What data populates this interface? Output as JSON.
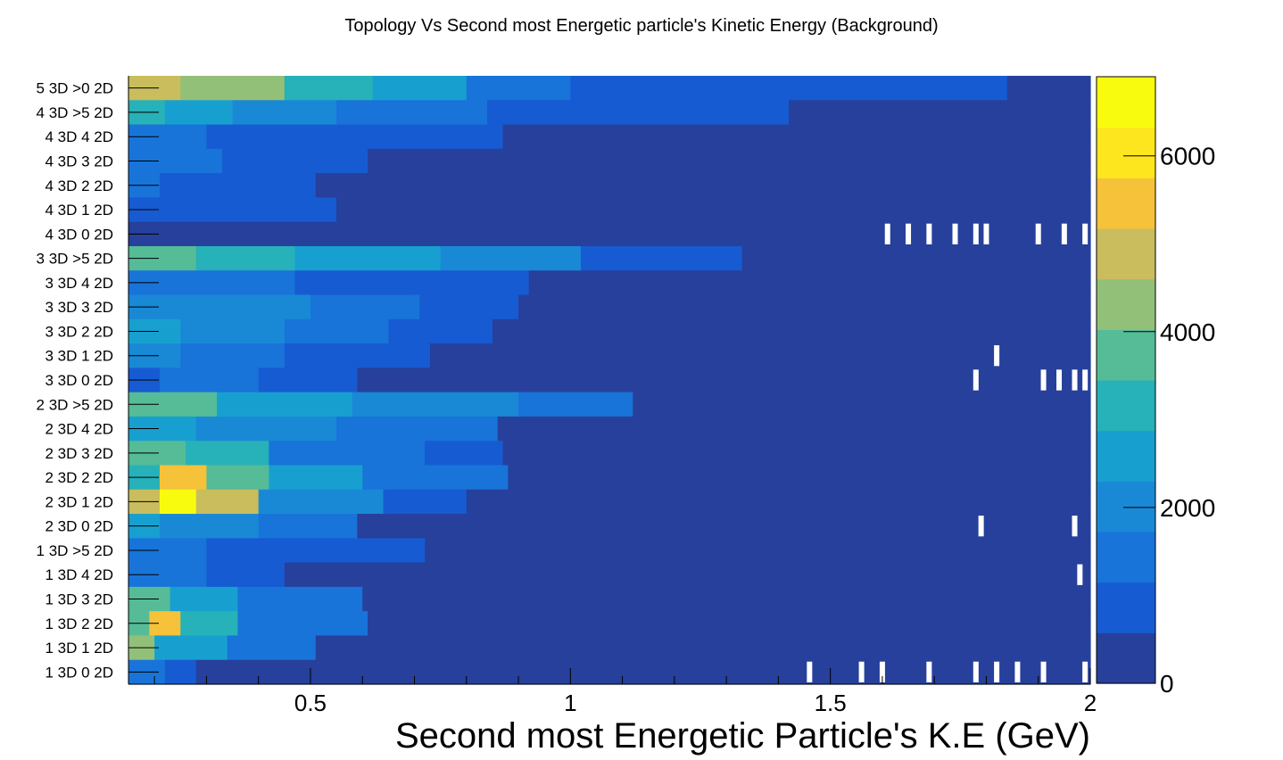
{
  "chart_data": {
    "type": "heatmap",
    "title": "Topology Vs Second most Energetic particle's Kinetic Energy (Background)",
    "xlabel": "Second most Energetic Particle's K.E (GeV)",
    "ylabel": "",
    "xlim": [
      0.15,
      2.0
    ],
    "x_ticks": [
      "0.5",
      "1",
      "1.5",
      "2"
    ],
    "z_range": [
      0,
      6900
    ],
    "z_ticks": [
      "0",
      "2000",
      "4000",
      "6000"
    ],
    "grid": false,
    "palette": [
      "#26409c",
      "#175bd2",
      "#1874d9",
      "#1989d6",
      "#17a0cf",
      "#27b1b8",
      "#55bc97",
      "#93c079",
      "#c9bd5d",
      "#f5c23a",
      "#fde61e",
      "#f9fb0e"
    ],
    "categories": [
      "5 3D  >0 2D",
      "4 3D  >5 2D",
      "4 3D  4 2D",
      "4 3D  3 2D",
      "4 3D  2 2D",
      "4 3D  1 2D",
      "4 3D  0 2D",
      "3 3D  >5 2D",
      "3 3D  4 2D",
      "3 3D  3 2D",
      "3 3D  2 2D",
      "3 3D  1 2D",
      "3 3D  0 2D",
      "2 3D  >5 2D",
      "2 3D  4 2D",
      "2 3D  3 2D",
      "2 3D  2 2D",
      "2 3D  1 2D",
      "2 3D  0 2D",
      "1 3D  >5 2D",
      "1 3D  4 2D",
      "1 3D  3 2D",
      "1 3D  2 2D",
      "1 3D  1 2D",
      "1 3D  0 2D"
    ],
    "rows": [
      {
        "category": "5 3D  >0 2D",
        "segments": [
          [
            0.15,
            0.2,
            4600
          ],
          [
            0.2,
            0.25,
            4900
          ],
          [
            0.25,
            0.34,
            4400
          ],
          [
            0.34,
            0.45,
            4100
          ],
          [
            0.45,
            0.52,
            3400
          ],
          [
            0.52,
            0.62,
            2900
          ],
          [
            0.62,
            0.8,
            2400
          ],
          [
            0.8,
            1.0,
            1600
          ],
          [
            1.0,
            1.38,
            1100
          ],
          [
            1.38,
            1.84,
            800
          ],
          [
            1.84,
            2.0,
            200
          ]
        ]
      },
      {
        "category": "4 3D  >5 2D",
        "segments": [
          [
            0.15,
            0.22,
            3000
          ],
          [
            0.22,
            0.35,
            2400
          ],
          [
            0.35,
            0.55,
            1900
          ],
          [
            0.55,
            0.84,
            1400
          ],
          [
            0.84,
            1.42,
            900
          ],
          [
            1.42,
            2.0,
            200
          ]
        ]
      },
      {
        "category": "4 3D  4 2D",
        "segments": [
          [
            0.15,
            0.21,
            1600
          ],
          [
            0.21,
            0.3,
            1300
          ],
          [
            0.3,
            0.64,
            1000
          ],
          [
            0.64,
            0.87,
            600
          ],
          [
            0.87,
            2.0,
            100
          ]
        ]
      },
      {
        "category": "4 3D  3 2D",
        "segments": [
          [
            0.15,
            0.21,
            1500
          ],
          [
            0.21,
            0.33,
            1200
          ],
          [
            0.33,
            0.61,
            900
          ],
          [
            0.61,
            0.84,
            500
          ],
          [
            0.84,
            2.0,
            100
          ]
        ]
      },
      {
        "category": "4 3D  2 2D",
        "segments": [
          [
            0.15,
            0.21,
            1300
          ],
          [
            0.21,
            0.51,
            1000
          ],
          [
            0.51,
            0.7,
            500
          ],
          [
            0.7,
            2.0,
            100
          ]
        ]
      },
      {
        "category": "4 3D  1 2D",
        "segments": [
          [
            0.15,
            0.21,
            1100
          ],
          [
            0.21,
            0.55,
            700
          ],
          [
            0.55,
            2.0,
            100
          ]
        ]
      },
      {
        "category": "4 3D  0 2D",
        "segments": [
          [
            0.15,
            0.21,
            500
          ],
          [
            0.21,
            2.0,
            50
          ]
        ]
      },
      {
        "category": "3 3D  >5 2D",
        "segments": [
          [
            0.15,
            0.28,
            3700
          ],
          [
            0.28,
            0.47,
            3200
          ],
          [
            0.47,
            0.75,
            2700
          ],
          [
            0.75,
            1.02,
            1800
          ],
          [
            1.02,
            1.33,
            1000
          ],
          [
            1.33,
            2.0,
            100
          ]
        ]
      },
      {
        "category": "3 3D  4 2D",
        "segments": [
          [
            0.15,
            0.25,
            1600
          ],
          [
            0.25,
            0.47,
            1400
          ],
          [
            0.47,
            0.7,
            1000
          ],
          [
            0.7,
            0.92,
            600
          ],
          [
            0.92,
            2.0,
            100
          ]
        ]
      },
      {
        "category": "3 3D  3 2D",
        "segments": [
          [
            0.15,
            0.25,
            2200
          ],
          [
            0.25,
            0.5,
            1800
          ],
          [
            0.5,
            0.71,
            1200
          ],
          [
            0.71,
            0.9,
            700
          ],
          [
            0.9,
            2.0,
            100
          ]
        ]
      },
      {
        "category": "3 3D  2 2D",
        "segments": [
          [
            0.15,
            0.25,
            2300
          ],
          [
            0.25,
            0.45,
            1900
          ],
          [
            0.45,
            0.65,
            1300
          ],
          [
            0.65,
            0.85,
            800
          ],
          [
            0.85,
            2.0,
            100
          ]
        ]
      },
      {
        "category": "3 3D  1 2D",
        "segments": [
          [
            0.15,
            0.25,
            2000
          ],
          [
            0.25,
            0.45,
            1500
          ],
          [
            0.45,
            0.73,
            900
          ],
          [
            0.73,
            2.0,
            100
          ]
        ]
      },
      {
        "category": "3 3D  0 2D",
        "segments": [
          [
            0.15,
            0.21,
            1000
          ],
          [
            0.21,
            0.4,
            1500
          ],
          [
            0.4,
            0.59,
            1000
          ],
          [
            0.59,
            2.0,
            100
          ]
        ]
      },
      {
        "category": "2 3D  >5 2D",
        "segments": [
          [
            0.15,
            0.32,
            3600
          ],
          [
            0.32,
            0.58,
            2800
          ],
          [
            0.58,
            0.9,
            2100
          ],
          [
            0.9,
            1.12,
            1200
          ],
          [
            1.12,
            2.0,
            100
          ]
        ]
      },
      {
        "category": "2 3D  4 2D",
        "segments": [
          [
            0.15,
            0.28,
            2600
          ],
          [
            0.28,
            0.55,
            2000
          ],
          [
            0.55,
            0.86,
            1300
          ],
          [
            0.86,
            2.0,
            100
          ]
        ]
      },
      {
        "category": "2 3D  3 2D",
        "segments": [
          [
            0.15,
            0.26,
            3600
          ],
          [
            0.26,
            0.42,
            2900
          ],
          [
            0.42,
            0.72,
            1700
          ],
          [
            0.72,
            0.87,
            800
          ],
          [
            0.87,
            2.0,
            100
          ]
        ]
      },
      {
        "category": "2 3D  2 2D",
        "segments": [
          [
            0.15,
            0.21,
            3300
          ],
          [
            0.21,
            0.3,
            5600
          ],
          [
            0.3,
            0.42,
            4000
          ],
          [
            0.42,
            0.6,
            2400
          ],
          [
            0.6,
            0.88,
            1200
          ],
          [
            0.88,
            2.0,
            100
          ]
        ]
      },
      {
        "category": "2 3D  1 2D",
        "segments": [
          [
            0.15,
            0.21,
            4800
          ],
          [
            0.21,
            0.28,
            6900
          ],
          [
            0.28,
            0.4,
            4700
          ],
          [
            0.4,
            0.64,
            2200
          ],
          [
            0.64,
            0.8,
            1000
          ],
          [
            0.8,
            2.0,
            100
          ]
        ]
      },
      {
        "category": "2 3D  0 2D",
        "segments": [
          [
            0.15,
            0.21,
            2800
          ],
          [
            0.21,
            0.4,
            2200
          ],
          [
            0.4,
            0.59,
            1200
          ],
          [
            0.59,
            2.0,
            100
          ]
        ]
      },
      {
        "category": "1 3D  >5 2D",
        "segments": [
          [
            0.15,
            0.3,
            1600
          ],
          [
            0.3,
            0.72,
            1100
          ],
          [
            0.72,
            2.0,
            100
          ]
        ]
      },
      {
        "category": "1 3D  4 2D",
        "segments": [
          [
            0.15,
            0.3,
            1600
          ],
          [
            0.3,
            0.45,
            1100
          ],
          [
            0.45,
            0.57,
            500
          ],
          [
            0.57,
            2.0,
            100
          ]
        ]
      },
      {
        "category": "1 3D  3 2D",
        "segments": [
          [
            0.15,
            0.23,
            3500
          ],
          [
            0.23,
            0.36,
            2500
          ],
          [
            0.36,
            0.6,
            1300
          ],
          [
            0.6,
            2.0,
            100
          ]
        ]
      },
      {
        "category": "1 3D  2 2D",
        "segments": [
          [
            0.15,
            0.19,
            3900
          ],
          [
            0.19,
            0.25,
            5500
          ],
          [
            0.25,
            0.36,
            3200
          ],
          [
            0.36,
            0.61,
            1300
          ],
          [
            0.61,
            2.0,
            100
          ]
        ]
      },
      {
        "category": "1 3D  1 2D",
        "segments": [
          [
            0.15,
            0.2,
            4200
          ],
          [
            0.2,
            0.34,
            2600
          ],
          [
            0.34,
            0.51,
            1200
          ],
          [
            0.51,
            2.0,
            100
          ]
        ]
      },
      {
        "category": "1 3D  0 2D",
        "segments": [
          [
            0.15,
            0.22,
            1600
          ],
          [
            0.22,
            0.28,
            900
          ],
          [
            0.28,
            2.0,
            200
          ]
        ]
      }
    ],
    "empty_bins": [
      {
        "category": "4 3D  0 2D",
        "x": [
          1.61,
          1.65,
          1.69,
          1.74,
          1.78,
          1.8,
          1.9,
          1.95,
          1.99
        ]
      },
      {
        "category": "3 3D  1 2D",
        "x": [
          1.82
        ]
      },
      {
        "category": "3 3D  0 2D",
        "x": [
          1.78,
          1.91,
          1.94,
          1.97,
          1.99
        ]
      },
      {
        "category": "2 3D  0 2D",
        "x": [
          1.79,
          1.97
        ]
      },
      {
        "category": "1 3D  4 2D",
        "x": [
          1.98
        ]
      },
      {
        "category": "1 3D  0 2D",
        "x": [
          1.46,
          1.56,
          1.6,
          1.69,
          1.78,
          1.82,
          1.86,
          1.91,
          1.99
        ]
      }
    ]
  }
}
